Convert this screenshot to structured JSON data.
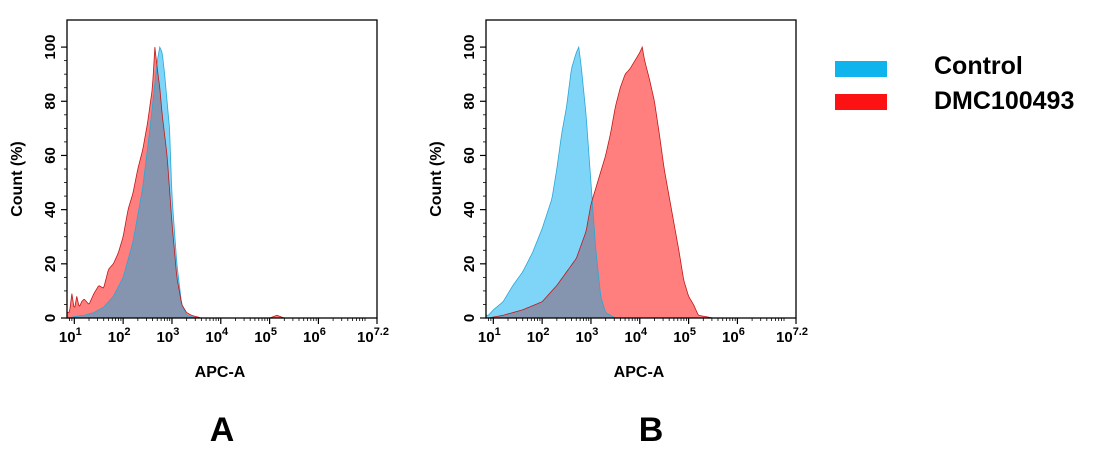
{
  "chart_data": [
    {
      "type": "area",
      "panel_label": "A",
      "xlabel": "APC-A",
      "ylabel": "Count  (%)",
      "xscale": "log10",
      "xlim": [
        0.85,
        7.2
      ],
      "ylim": [
        0,
        110
      ],
      "x_ticks": [
        {
          "base": "10",
          "exp": "1"
        },
        {
          "base": "10",
          "exp": "2"
        },
        {
          "base": "10",
          "exp": "3"
        },
        {
          "base": "10",
          "exp": "4"
        },
        {
          "base": "10",
          "exp": "5"
        },
        {
          "base": "10",
          "exp": "6"
        },
        {
          "base": "10",
          "exp": "7.2"
        }
      ],
      "y_ticks": [
        "0",
        "20",
        "40",
        "60",
        "80",
        "100"
      ],
      "series": [
        {
          "name": "Control",
          "color": "#5bcbf5",
          "log_x": [
            0.9,
            1.0,
            1.2,
            1.4,
            1.6,
            1.8,
            2.0,
            2.2,
            2.4,
            2.55,
            2.7,
            2.75,
            2.8,
            2.85,
            2.9,
            2.95,
            3.0,
            3.1,
            3.2,
            3.3,
            3.5,
            4.0,
            5.0,
            7.2
          ],
          "values": [
            0,
            0.5,
            1,
            2,
            4,
            8,
            15,
            28,
            48,
            70,
            95,
            100,
            98,
            90,
            80,
            70,
            45,
            20,
            5,
            1,
            0,
            0,
            0,
            0
          ]
        },
        {
          "name": "DMC100493",
          "color": "#fd1f1f",
          "log_x": [
            0.9,
            0.95,
            1.0,
            1.05,
            1.1,
            1.15,
            1.2,
            1.3,
            1.4,
            1.5,
            1.6,
            1.7,
            1.8,
            1.9,
            2.0,
            2.1,
            2.2,
            2.3,
            2.4,
            2.5,
            2.6,
            2.65,
            2.7,
            2.75,
            2.8,
            2.9,
            3.0,
            3.1,
            3.2,
            3.3,
            3.4,
            3.6,
            4.0,
            4.5,
            5.0,
            5.15,
            5.3,
            7.2
          ],
          "values": [
            2,
            9,
            3,
            8,
            4,
            6,
            7,
            5,
            9,
            12,
            11,
            18,
            20,
            24,
            30,
            40,
            46,
            55,
            62,
            72,
            85,
            100,
            92,
            85,
            75,
            60,
            35,
            15,
            5,
            2,
            1,
            0,
            0,
            0,
            0,
            1,
            0,
            0
          ]
        }
      ]
    },
    {
      "type": "area",
      "panel_label": "B",
      "xlabel": "APC-A",
      "ylabel": "Count  (%)",
      "xscale": "log10",
      "xlim": [
        0.85,
        7.2
      ],
      "ylim": [
        0,
        110
      ],
      "x_ticks": [
        {
          "base": "10",
          "exp": "1"
        },
        {
          "base": "10",
          "exp": "2"
        },
        {
          "base": "10",
          "exp": "3"
        },
        {
          "base": "10",
          "exp": "4"
        },
        {
          "base": "10",
          "exp": "5"
        },
        {
          "base": "10",
          "exp": "6"
        },
        {
          "base": "10",
          "exp": "7.2"
        }
      ],
      "y_ticks": [
        "0",
        "20",
        "40",
        "60",
        "80",
        "100"
      ],
      "series": [
        {
          "name": "Control",
          "color": "#5bcbf5",
          "log_x": [
            0.9,
            1.0,
            1.2,
            1.4,
            1.6,
            1.8,
            2.0,
            2.2,
            2.3,
            2.4,
            2.5,
            2.6,
            2.7,
            2.75,
            2.8,
            2.9,
            3.0,
            3.1,
            3.2,
            3.3,
            3.5,
            7.2
          ],
          "values": [
            1,
            3,
            6,
            12,
            17,
            24,
            33,
            44,
            55,
            68,
            78,
            92,
            98,
            100,
            93,
            75,
            50,
            25,
            8,
            2,
            0,
            0
          ]
        },
        {
          "name": "DMC100493",
          "color": "#fd1f1f",
          "log_x": [
            0.9,
            1.2,
            1.6,
            2.0,
            2.3,
            2.5,
            2.7,
            2.9,
            3.0,
            3.1,
            3.2,
            3.3,
            3.4,
            3.5,
            3.6,
            3.7,
            3.8,
            3.9,
            4.0,
            4.05,
            4.1,
            4.2,
            4.3,
            4.4,
            4.5,
            4.6,
            4.7,
            4.8,
            4.9,
            5.0,
            5.1,
            5.2,
            5.5,
            7.2
          ],
          "values": [
            0,
            1,
            3,
            6,
            12,
            17,
            22,
            32,
            42,
            48,
            54,
            60,
            68,
            78,
            85,
            90,
            92,
            95,
            98,
            100,
            95,
            88,
            80,
            68,
            55,
            45,
            35,
            25,
            14,
            8,
            5,
            1,
            0,
            0
          ]
        }
      ]
    }
  ],
  "legend": [
    {
      "label": "Control",
      "color": "#0fb4ed"
    },
    {
      "label": "DMC100493",
      "color": "#fc1212"
    }
  ]
}
